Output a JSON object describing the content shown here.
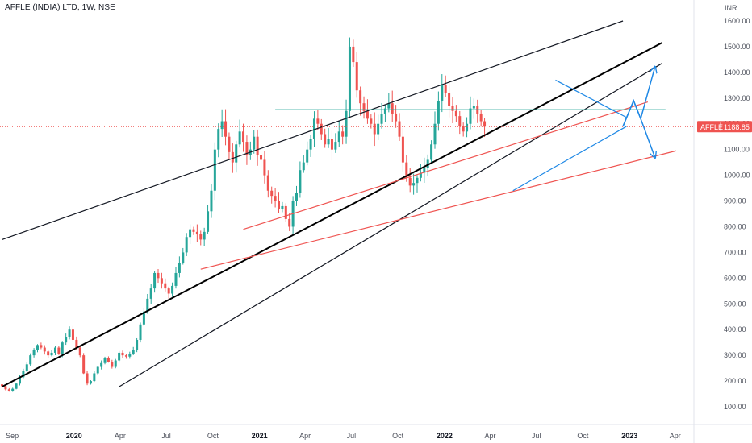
{
  "header": {
    "title": "AFFLE (INDIA) LTD, 1W, NSE"
  },
  "chart_data": {
    "type": "candlestick",
    "currency_label": "INR",
    "y_ticks": [
      100,
      200,
      300,
      400,
      500,
      600,
      700,
      800,
      900,
      1000,
      1100,
      1200,
      1300,
      1400,
      1500,
      1600
    ],
    "y_tick_labels": [
      "100.00",
      "200.00",
      "300.00",
      "400.00",
      "500.00",
      "600.00",
      "700.00",
      "800.00",
      "900.00",
      "1000.00",
      "1100.00",
      "1200.00",
      "1300.00",
      "1400.00",
      "1500.00",
      "1600.00"
    ],
    "x_ticks": [
      {
        "label": "Sep",
        "date": "2019-09-01"
      },
      {
        "label": "2020",
        "date": "2020-01-01"
      },
      {
        "label": "Apr",
        "date": "2020-04-01"
      },
      {
        "label": "Jul",
        "date": "2020-07-01"
      },
      {
        "label": "Oct",
        "date": "2020-10-01"
      },
      {
        "label": "2021",
        "date": "2021-01-01"
      },
      {
        "label": "Apr",
        "date": "2021-04-01"
      },
      {
        "label": "Jul",
        "date": "2021-07-01"
      },
      {
        "label": "Oct",
        "date": "2021-10-01"
      },
      {
        "label": "2022",
        "date": "2022-01-01"
      },
      {
        "label": "Apr",
        "date": "2022-04-01"
      },
      {
        "label": "Jul",
        "date": "2022-07-01"
      },
      {
        "label": "Oct",
        "date": "2022-10-01"
      },
      {
        "label": "2023",
        "date": "2023-01-01"
      },
      {
        "label": "Apr",
        "date": "2023-04-01"
      }
    ],
    "x_range": [
      "2019-08-08",
      "2023-05-08"
    ],
    "ylim": [
      40,
      1640
    ],
    "last_price": {
      "symbol": "AFFLE",
      "value": "1188.85",
      "price": 1188.85
    },
    "colors": {
      "up": "#26a69a",
      "down": "#ef5350",
      "price_line": "#ef5350",
      "pattern_blue": "#1e88e5"
    },
    "closes": [
      180,
      168,
      162,
      170,
      190,
      215,
      240,
      265,
      300,
      320,
      340,
      330,
      315,
      300,
      310,
      330,
      305,
      350,
      370,
      400,
      360,
      330,
      300,
      230,
      190,
      200,
      230,
      255,
      270,
      290,
      275,
      255,
      280,
      310,
      300,
      295,
      305,
      320,
      360,
      420,
      470,
      520,
      560,
      620,
      600,
      580,
      560,
      540,
      570,
      620,
      660,
      700,
      760,
      790,
      780,
      770,
      750,
      780,
      860,
      940,
      1100,
      1180,
      1210,
      1150,
      1090,
      1050,
      1120,
      1170,
      1130,
      1080,
      1100,
      1150,
      1080,
      1060,
      1000,
      940,
      920,
      900,
      870,
      880,
      830,
      800,
      900,
      930,
      1020,
      1050,
      1100,
      1140,
      1220,
      1200,
      1160,
      1120,
      1140,
      1100,
      1130,
      1170,
      1150,
      1250,
      1500,
      1440,
      1330,
      1280,
      1250,
      1220,
      1200,
      1160,
      1200,
      1240,
      1260,
      1280,
      1240,
      1210,
      1150,
      1050,
      990,
      960,
      970,
      990,
      1010,
      1030,
      1060,
      1120,
      1200,
      1290,
      1350,
      1320,
      1270,
      1250,
      1230,
      1190,
      1170,
      1200,
      1260,
      1270,
      1240,
      1210,
      1188.85
    ],
    "trend_lines": [
      {
        "name": "upper-channel",
        "color": "#131722",
        "from": {
          "date": "2019-08-12",
          "price": 750
        },
        "to": {
          "date": "2022-12-19",
          "price": 1600
        }
      },
      {
        "name": "main-trend",
        "color": "#000000",
        "from": {
          "date": "2019-08-12",
          "price": 178
        },
        "to": {
          "date": "2023-03-06",
          "price": 1515
        }
      },
      {
        "name": "lower-channel",
        "color": "#131722",
        "from": {
          "date": "2020-03-30",
          "price": 178
        },
        "to": {
          "date": "2023-03-06",
          "price": 1435
        }
      },
      {
        "name": "red-support-long",
        "color": "#ef5350",
        "from": {
          "date": "2020-09-07",
          "price": 635
        },
        "to": {
          "date": "2023-04-03",
          "price": 1095
        }
      },
      {
        "name": "red-support-mid",
        "color": "#ef5350",
        "from": {
          "date": "2020-11-30",
          "price": 790
        },
        "to": {
          "date": "2023-02-06",
          "price": 1285
        }
      },
      {
        "name": "horizontal-resistance",
        "color": "#26a69a",
        "from": {
          "date": "2021-02-01",
          "price": 1255
        },
        "to": {
          "date": "2023-03-13",
          "price": 1255
        }
      },
      {
        "name": "wedge-upper",
        "color": "#1e88e5",
        "from": {
          "date": "2022-08-08",
          "price": 1370
        },
        "to": {
          "date": "2022-12-26",
          "price": 1225
        }
      },
      {
        "name": "wedge-lower",
        "color": "#1e88e5",
        "from": {
          "date": "2022-05-16",
          "price": 940
        },
        "to": {
          "date": "2022-12-26",
          "price": 1190
        }
      }
    ],
    "projections": [
      {
        "name": "bullish-projection",
        "color": "#1e88e5",
        "points": [
          {
            "date": "2022-12-19",
            "price": 1190
          },
          {
            "date": "2023-01-09",
            "price": 1290
          },
          {
            "date": "2023-01-23",
            "price": 1220
          },
          {
            "date": "2023-02-20",
            "price": 1420
          }
        ]
      },
      {
        "name": "bearish-projection",
        "color": "#1e88e5",
        "points": [
          {
            "date": "2022-12-19",
            "price": 1190
          },
          {
            "date": "2023-01-09",
            "price": 1290
          },
          {
            "date": "2023-01-23",
            "price": 1220
          },
          {
            "date": "2023-02-20",
            "price": 1070
          }
        ]
      }
    ]
  }
}
